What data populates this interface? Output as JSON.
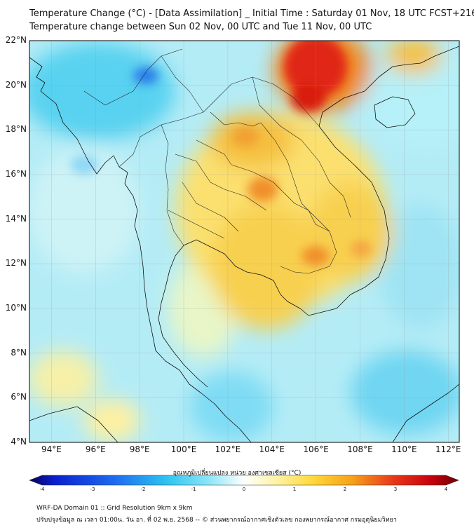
{
  "title": {
    "line1": "Temperature Change (°C) - [Data Assimilation] _ Initial Time : Saturday 01 Nov, 18 UTC FCST+216",
    "line2": "Temperature change between Sun 02 Nov, 00 UTC and Tue 11 Nov, 00 UTC"
  },
  "map": {
    "lat_labels": [
      "22°N",
      "20°N",
      "18°N",
      "16°N",
      "14°N",
      "12°N",
      "10°N",
      "8°N",
      "6°N",
      "4°N"
    ],
    "lon_labels": [
      "94°E",
      "96°E",
      "98°E",
      "100°E",
      "102°E",
      "104°E",
      "106°E",
      "108°E",
      "110°E",
      "112°E"
    ],
    "lat_range": [
      4,
      22
    ],
    "lon_range": [
      93,
      112.5
    ]
  },
  "colorbar": {
    "label": "อุณหภูมิเปลี่ยนแปลง หน่วย องศาเซลเซียส (°C)",
    "ticks": [
      "-4",
      "-3",
      "-2",
      "-1",
      "0",
      "1",
      "2",
      "3",
      "4"
    ],
    "min": -4,
    "max": 4
  },
  "footer": {
    "line1": "WRF-DA Domain 01 :: Grid Resolution 9km x 9km",
    "line2": "ปรับปรุงข้อมูล ณ เวลา 01:00น. วัน อา. ที่ 02 พ.ย. 2568 -- © ส่วนพยากรณ์อากาศเชิงตัวเลข กองพยากรณ์อากาศ กรมอุตุนิยมวิทยา"
  }
}
